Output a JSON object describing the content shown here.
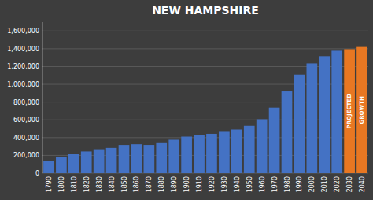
{
  "chart_data": {
    "type": "bar",
    "title": "NEW HAMPSHIRE",
    "categories": [
      "1790",
      "1800",
      "1810",
      "1820",
      "1830",
      "1840",
      "1850",
      "1860",
      "1870",
      "1880",
      "1890",
      "1900",
      "1910",
      "1920",
      "1930",
      "1940",
      "1950",
      "1960",
      "1970",
      "1980",
      "1990",
      "2000",
      "2010",
      "2020",
      "2030",
      "2040"
    ],
    "values": [
      141885,
      183858,
      214460,
      244161,
      269328,
      284574,
      317976,
      326073,
      318300,
      346991,
      376530,
      411588,
      430572,
      443083,
      465293,
      491524,
      533242,
      606921,
      737681,
      920610,
      1109252,
      1235786,
      1316470,
      1377529,
      1395000,
      1420000
    ],
    "colors": [
      "#4472C4",
      "#4472C4",
      "#4472C4",
      "#4472C4",
      "#4472C4",
      "#4472C4",
      "#4472C4",
      "#4472C4",
      "#4472C4",
      "#4472C4",
      "#4472C4",
      "#4472C4",
      "#4472C4",
      "#4472C4",
      "#4472C4",
      "#4472C4",
      "#4472C4",
      "#4472C4",
      "#4472C4",
      "#4472C4",
      "#4472C4",
      "#4472C4",
      "#4472C4",
      "#4472C4",
      "#E87722",
      "#E87722"
    ],
    "ylim": [
      0,
      1700000
    ],
    "yticks": [
      0,
      {
        "value": 200000,
        "label": "200,000"
      },
      {
        "value": 400000,
        "label": "400,000"
      },
      {
        "value": 600000,
        "label": "600,000"
      },
      {
        "value": 800000,
        "label": "800,000"
      },
      {
        "value": 1000000,
        "label": "1,000,000"
      },
      {
        "value": 1200000,
        "label": "1,200,000"
      },
      {
        "value": 1400000,
        "label": "1,400,000"
      },
      {
        "value": 1600000,
        "label": "1,600,000"
      }
    ],
    "grid": true,
    "annotations": [
      {
        "text": "PROJECTED",
        "category": "2030"
      },
      {
        "text": "GROWTH",
        "category": "2040"
      }
    ]
  }
}
